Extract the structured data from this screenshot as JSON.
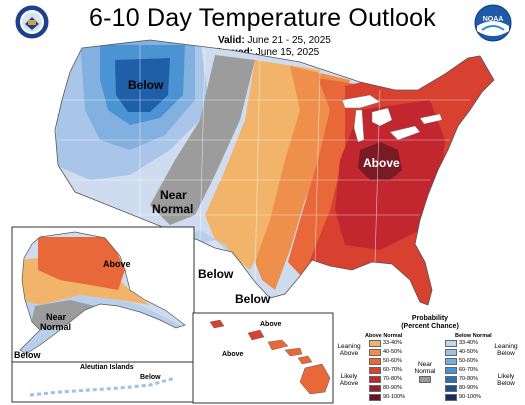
{
  "header": {
    "title": "6-10 Day Temperature Outlook",
    "valid_label": "Valid:",
    "valid_value": "June 21 - 25, 2025",
    "issued_label": "Issued:",
    "issued_value": "June 15, 2025"
  },
  "logos": {
    "left": "department-of-commerce-seal",
    "right_text": "NOAA"
  },
  "map_labels": {
    "conus_below": "Below",
    "conus_near_normal_1": "Near",
    "conus_near_normal_2": "Normal",
    "conus_above": "Above",
    "texas_below_1": "Below",
    "texas_below_2": "Below",
    "alaska_above": "Above",
    "alaska_near_1": "Near",
    "alaska_near_2": "Normal",
    "alaska_below": "Below",
    "aleutian_title": "Aleutian Islands",
    "aleutian_below": "Below",
    "hawaii_above_1": "Above",
    "hawaii_above_2": "Above"
  },
  "legend": {
    "title_1": "Probability",
    "title_2": "(Percent Chance)",
    "above_header": "Above Normal",
    "below_header": "Below Normal",
    "leaning_above_1": "Leaning",
    "leaning_above_2": "Above",
    "likely_above_1": "Likely",
    "likely_above_2": "Above",
    "near_normal_1": "Near",
    "near_normal_2": "Normal",
    "leaning_below_1": "Leaning",
    "leaning_below_2": "Below",
    "likely_below_1": "Likely",
    "likely_below_2": "Below",
    "above_ranges": [
      "33-40%",
      "40-50%",
      "50-60%",
      "60-70%",
      "70-80%",
      "80-90%",
      "90-100%"
    ],
    "below_ranges": [
      "33-40%",
      "40-50%",
      "50-60%",
      "60-70%",
      "70-80%",
      "80-90%",
      "90-100%"
    ],
    "above_colors": [
      "#f2b46b",
      "#ee8f4b",
      "#e8683a",
      "#d8412f",
      "#c2262f",
      "#9b1c2b",
      "#6a1122"
    ],
    "below_colors": [
      "#c4d6ee",
      "#9cc2e6",
      "#75aee0",
      "#4b93d2",
      "#2b73b8",
      "#1e4f8d",
      "#1a2a66"
    ],
    "near_color": "#9c9c9c"
  }
}
